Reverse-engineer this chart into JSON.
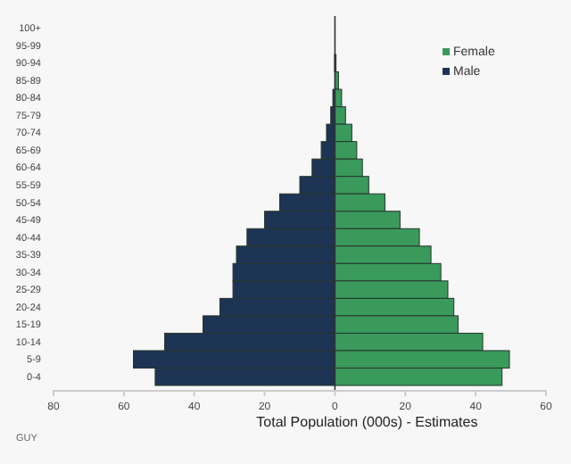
{
  "chart_data": {
    "type": "bar",
    "orientation": "horizontal",
    "categories": [
      "100+",
      "95-99",
      "90-94",
      "85-89",
      "80-84",
      "75-79",
      "70-74",
      "65-69",
      "60-64",
      "55-59",
      "50-54",
      "45-49",
      "40-44",
      "35-39",
      "30-34",
      "25-29",
      "20-24",
      "15-19",
      "10-14",
      "5-9",
      "0-4"
    ],
    "series": [
      {
        "name": "Female",
        "color": "#3a9a5c",
        "values": [
          0,
          null,
          0.3,
          1,
          1.9,
          3,
          4.8,
          6.2,
          7.8,
          9.6,
          14.2,
          18.5,
          24,
          27.3,
          30.1,
          32.1,
          33.8,
          35,
          42,
          49.6,
          47.5
        ]
      },
      {
        "name": "Male",
        "color": "#1d3454",
        "values": [
          0,
          0,
          -0.1,
          null,
          -0.6,
          -1.2,
          -2.4,
          -3.9,
          -6.5,
          -10,
          -15.7,
          -20,
          -25,
          -28,
          -29,
          -29,
          -32.7,
          -37.5,
          -48.4,
          -57.3,
          -51.1
        ]
      }
    ],
    "xlim": [
      -80,
      60
    ],
    "xticks": [
      {
        "value": -80,
        "label": "80"
      },
      {
        "value": -60,
        "label": "60"
      },
      {
        "value": -40,
        "label": "40"
      },
      {
        "value": -20,
        "label": "20"
      },
      0,
      20,
      40,
      60
    ],
    "xlabel": "Total Population (000s) - Estimates",
    "legend": "top right",
    "stacked": true,
    "annotations": [
      "GUY"
    ]
  }
}
